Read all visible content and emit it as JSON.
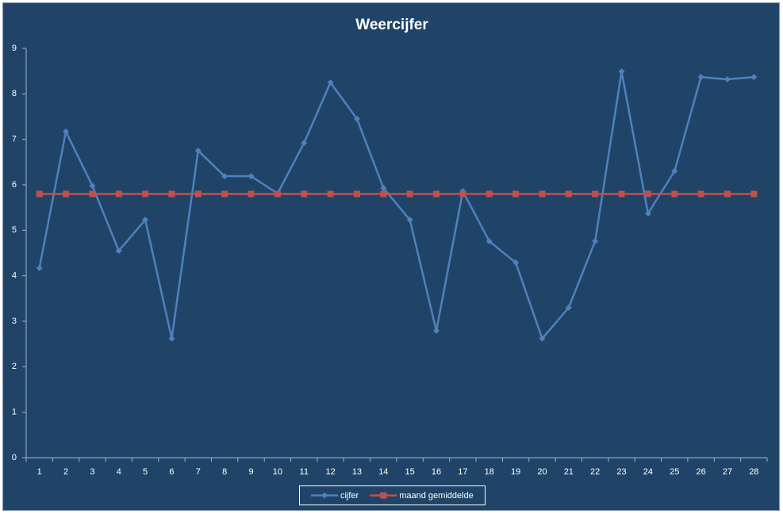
{
  "chart_data": {
    "type": "line",
    "title": "Weercijfer",
    "categories": [
      "1",
      "2",
      "3",
      "4",
      "5",
      "6",
      "7",
      "8",
      "9",
      "10",
      "11",
      "12",
      "13",
      "14",
      "15",
      "16",
      "17",
      "18",
      "19",
      "20",
      "21",
      "22",
      "23",
      "24",
      "25",
      "26",
      "27",
      "28"
    ],
    "series": [
      {
        "name": "cijfer",
        "color": "#4f81bd",
        "marker": "diamond",
        "values": [
          4.17,
          7.17,
          5.98,
          4.55,
          5.23,
          2.62,
          6.75,
          6.19,
          6.19,
          5.81,
          6.92,
          8.25,
          7.45,
          5.93,
          5.23,
          2.79,
          5.86,
          4.76,
          4.29,
          2.62,
          3.3,
          4.76,
          8.49,
          5.37,
          6.3,
          8.37,
          8.32,
          8.37
        ]
      },
      {
        "name": "maand gemiddelde",
        "color": "#c0504d",
        "marker": "square",
        "values": [
          5.8,
          5.8,
          5.8,
          5.8,
          5.8,
          5.8,
          5.8,
          5.8,
          5.8,
          5.8,
          5.8,
          5.8,
          5.8,
          5.8,
          5.8,
          5.8,
          5.8,
          5.8,
          5.8,
          5.8,
          5.8,
          5.8,
          5.8,
          5.8,
          5.8,
          5.8,
          5.8,
          5.8
        ]
      }
    ],
    "ylim": [
      0,
      9
    ],
    "yticks": [
      0,
      1,
      2,
      3,
      4,
      5,
      6,
      7,
      8,
      9
    ],
    "grid": false,
    "legend": "bottom"
  }
}
